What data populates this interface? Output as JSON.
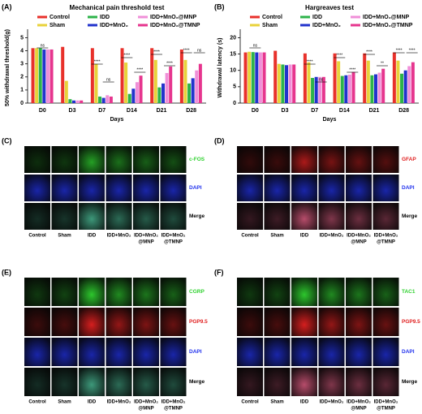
{
  "chart_data": [
    {
      "type": "bar",
      "panel": "(A)",
      "title": "Mechanical pain threshold test",
      "xlabel": "Days",
      "ylabel": "50% withdrawal threshold(g)",
      "categories": [
        "D0",
        "D3",
        "D7",
        "D14",
        "D21",
        "D28"
      ],
      "series": [
        {
          "name": "Control",
          "color": "#e8312b",
          "values": [
            4.2,
            4.3,
            4.2,
            4.2,
            4.2,
            4.1
          ]
        },
        {
          "name": "Sham",
          "color": "#e8d23a",
          "values": [
            4.2,
            1.7,
            3.0,
            3.1,
            3.3,
            3.3
          ]
        },
        {
          "name": "IDD",
          "color": "#2db34a",
          "values": [
            4.2,
            0.3,
            0.5,
            0.7,
            1.2,
            1.5
          ]
        },
        {
          "name": "IDD+MnO₂",
          "color": "#2233cc",
          "values": [
            4.1,
            0.2,
            0.4,
            1.1,
            1.5,
            1.9
          ]
        },
        {
          "name": "IDD+MnO₂@MNP",
          "color": "#f08fd8",
          "values": [
            4.1,
            0.2,
            0.6,
            1.6,
            2.3,
            2.5
          ]
        },
        {
          "name": "IDD+MnO₂@TMNP",
          "color": "#e6358e",
          "values": [
            4.1,
            0.2,
            0.5,
            2.1,
            2.8,
            3.0
          ]
        }
      ],
      "ylim": [
        0,
        5.4
      ],
      "yticks": [
        0,
        1,
        2,
        3,
        4,
        5
      ],
      "legend": "top",
      "annotations": [
        "ns",
        "****",
        "ns",
        "****",
        "****",
        "****",
        "****",
        "****",
        "ns"
      ]
    },
    {
      "type": "bar",
      "panel": "(B)",
      "title": "Hargreaves test",
      "xlabel": "Days",
      "ylabel": "Withdrawal latency (s)",
      "categories": [
        "D0",
        "D3",
        "D7",
        "D14",
        "D21",
        "D28"
      ],
      "series": [
        {
          "name": "Control",
          "color": "#e8312b",
          "values": [
            15.5,
            16.0,
            15.2,
            15.2,
            15.2,
            15.5
          ]
        },
        {
          "name": "Sham",
          "color": "#e8d23a",
          "values": [
            15.7,
            12.0,
            12.5,
            12.8,
            13.0,
            13.0
          ]
        },
        {
          "name": "IDD",
          "color": "#2db34a",
          "values": [
            15.6,
            11.8,
            7.7,
            8.3,
            8.5,
            9.0
          ]
        },
        {
          "name": "IDD+MnO₂",
          "color": "#2233cc",
          "values": [
            15.5,
            11.6,
            8.0,
            8.5,
            8.8,
            10.0
          ]
        },
        {
          "name": "IDD+MnO₂@MNP",
          "color": "#f08fd8",
          "values": [
            15.5,
            11.8,
            8.0,
            8.7,
            9.3,
            11.3
          ]
        },
        {
          "name": "IDD+MnO₂@TMNP",
          "color": "#e6358e",
          "values": [
            15.5,
            11.8,
            8.0,
            9.5,
            10.5,
            12.5
          ]
        }
      ],
      "ylim": [
        0,
        21.6
      ],
      "yticks": [
        0,
        5,
        10,
        15,
        20
      ],
      "legend": "top",
      "annotations": [
        "ns",
        "****",
        "ns",
        "****",
        "****",
        "****",
        "**",
        "****",
        "****"
      ]
    }
  ],
  "panels": [
    {
      "letter": "(C)",
      "rows": [
        {
          "label": "c-FOS",
          "color": "#2fd12f"
        },
        {
          "label": "DAPI",
          "color": "#2233ee"
        },
        {
          "label": "Merge",
          "color": "#000000"
        }
      ],
      "columns": [
        [
          "Control"
        ],
        [
          "Sham"
        ],
        [
          "IDD"
        ],
        [
          "IDD+MnO₂"
        ],
        [
          "IDD+MnO₂",
          "@MNP"
        ],
        [
          "IDD+MnO₂",
          "@TMNP"
        ]
      ]
    },
    {
      "letter": "(D)",
      "rows": [
        {
          "label": "GFAP",
          "color": "#e02020"
        },
        {
          "label": "DAPI",
          "color": "#2233ee"
        },
        {
          "label": "Merge",
          "color": "#000000"
        }
      ],
      "columns": [
        [
          "Control"
        ],
        [
          "Sham"
        ],
        [
          "IDD"
        ],
        [
          "IDD+MnO₂"
        ],
        [
          "IDD+MnO₂",
          "@MNP"
        ],
        [
          "IDD+MnO₂",
          "@TMNP"
        ]
      ]
    },
    {
      "letter": "(E)",
      "rows": [
        {
          "label": "CGRP",
          "color": "#2fd12f"
        },
        {
          "label": "PGP9.5",
          "color": "#e02020"
        },
        {
          "label": "DAPI",
          "color": "#2233ee"
        },
        {
          "label": "Merge",
          "color": "#000000"
        }
      ],
      "columns": [
        [
          "Control"
        ],
        [
          "Sham"
        ],
        [
          "IDD"
        ],
        [
          "IDD+MnO₂"
        ],
        [
          "IDD+MnO₂",
          "@MNP"
        ],
        [
          "IDD+MnO₂",
          "@TMNP"
        ]
      ]
    },
    {
      "letter": "(F)",
      "rows": [
        {
          "label": "TAC1",
          "color": "#2fd12f"
        },
        {
          "label": "PGP9.5",
          "color": "#e02020"
        },
        {
          "label": "DAPI",
          "color": "#2233ee"
        },
        {
          "label": "Merge",
          "color": "#000000"
        }
      ],
      "columns": [
        [
          "Control"
        ],
        [
          "Sham"
        ],
        [
          "IDD"
        ],
        [
          "IDD+MnO₂"
        ],
        [
          "IDD+MnO₂",
          "@MNP"
        ],
        [
          "IDD+MnO₂",
          "@TMNP"
        ]
      ]
    }
  ]
}
